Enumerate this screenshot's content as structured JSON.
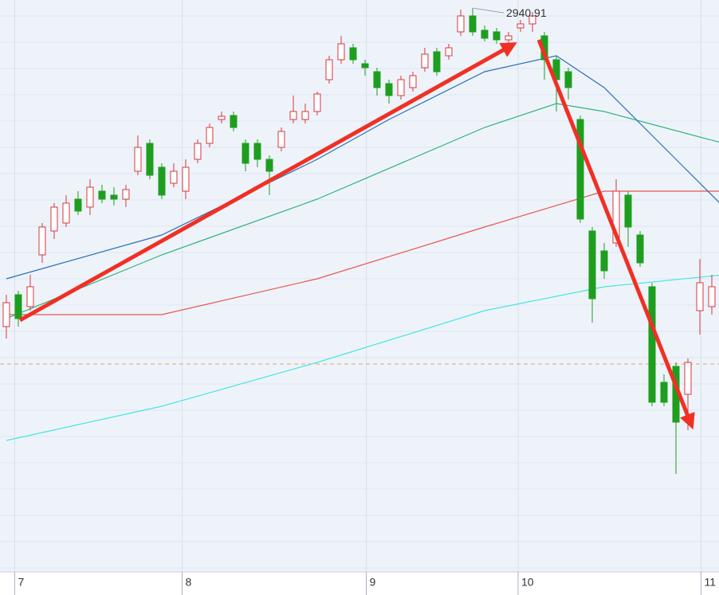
{
  "chart_data": {
    "type": "candlestick",
    "ylim": [
      2587,
      2946
    ],
    "xlim": [
      -0.53,
      59.6
    ],
    "up_color": "#d9373c",
    "down_color": "#1e9e1e",
    "xticks": [
      {
        "value": 0.7,
        "label": "7"
      },
      {
        "value": 14.7,
        "label": "8"
      },
      {
        "value": 30.1,
        "label": "9"
      },
      {
        "value": 42.8,
        "label": "10"
      },
      {
        "value": 58.1,
        "label": "11"
      }
    ],
    "high_annotation": 2940.91,
    "reference_line": {
      "value": 2717.5,
      "color": "#e8a060"
    },
    "open": [
      2741,
      2761,
      2753.5,
      2786,
      2801,
      2806,
      2821,
      2816,
      2826,
      2823.5,
      2821,
      2838.5,
      2856,
      2841,
      2831,
      2826,
      2846,
      2856,
      2871,
      2873.5,
      2856,
      2856,
      2846,
      2853.5,
      2871,
      2871,
      2876,
      2896,
      2908.5,
      2916,
      2906,
      2901,
      2893.5,
      2886,
      2891,
      2903.5,
      2913.5,
      2911,
      2926,
      2936,
      2927,
      2926,
      2921,
      2928.5,
      2931,
      2923.5,
      2908.5,
      2901,
      2871,
      2801,
      2788.5,
      2793.5,
      2823.5,
      2798.5,
      2766,
      2706,
      2716,
      2698.5,
      2751,
      2753.5
    ],
    "high": [
      2761,
      2763.5,
      2773.5,
      2806,
      2818.5,
      2823.5,
      2826,
      2833.5,
      2830,
      2828.5,
      2830,
      2861,
      2858.5,
      2843.5,
      2843.5,
      2846,
      2858.5,
      2868.5,
      2876,
      2876,
      2858.5,
      2858.5,
      2848.5,
      2866,
      2886,
      2881,
      2888.5,
      2911,
      2923.5,
      2918.5,
      2908.5,
      2903.5,
      2896,
      2898.5,
      2901,
      2916,
      2916,
      2918.5,
      2940,
      2940.91,
      2930,
      2928.5,
      2926,
      2933.5,
      2938.5,
      2926,
      2911,
      2903.5,
      2873.5,
      2803.5,
      2793.5,
      2833.5,
      2826,
      2801,
      2768.5,
      2711,
      2718.5,
      2721,
      2783.5,
      2773.5
    ],
    "low": [
      2733.5,
      2741,
      2751,
      2781,
      2796,
      2803.5,
      2811,
      2811,
      2818.5,
      2817,
      2816,
      2836,
      2833.5,
      2821,
      2828.5,
      2821,
      2843.5,
      2853.5,
      2868.5,
      2863.5,
      2838.5,
      2841,
      2823.5,
      2851,
      2868.5,
      2868.5,
      2873.5,
      2893.5,
      2906,
      2906,
      2898.5,
      2886,
      2881,
      2883.5,
      2888.5,
      2901,
      2898.5,
      2908.5,
      2923.5,
      2923.5,
      2920,
      2918.5,
      2918.5,
      2926,
      2926,
      2896,
      2876,
      2883.5,
      2806,
      2743.5,
      2771,
      2791,
      2791,
      2778.5,
      2691,
      2691,
      2648.5,
      2676,
      2736,
      2748.5
    ],
    "close": [
      2756,
      2746,
      2766,
      2803.5,
      2816,
      2818.5,
      2813.5,
      2828.5,
      2821,
      2821,
      2827,
      2853.5,
      2836,
      2823.5,
      2838.5,
      2841,
      2856,
      2866,
      2873,
      2866,
      2843.5,
      2846,
      2838.5,
      2863.5,
      2876,
      2876,
      2887,
      2908.5,
      2918.5,
      2908.5,
      2903.5,
      2891,
      2886,
      2896,
      2898.5,
      2912,
      2901,
      2916,
      2936,
      2926,
      2922,
      2921,
      2923.5,
      2931,
      2936,
      2908.5,
      2896,
      2891,
      2808.5,
      2758.5,
      2776,
      2826,
      2803.5,
      2781,
      2693.5,
      2693.5,
      2681,
      2718.5,
      2768.5,
      2766
    ],
    "lines": [
      {
        "color": "#46e6e0",
        "x": [
          0,
          13,
          26,
          40,
          50,
          60
        ],
        "values": [
          2669.5,
          2691,
          2718.5,
          2751,
          2766,
          2773.5
        ]
      },
      {
        "color": "#e8564f",
        "x": [
          0,
          13,
          26,
          40,
          50,
          60
        ],
        "values": [
          2748.5,
          2748.5,
          2771,
          2803.5,
          2826,
          2826
        ]
      },
      {
        "color": "#2fb37a",
        "x": [
          0,
          13,
          26,
          40,
          46,
          50,
          60
        ],
        "values": [
          2746,
          2786,
          2821,
          2866,
          2881,
          2876,
          2856
        ]
      },
      {
        "color": "#2a6fb8",
        "x": [
          0,
          13,
          26,
          32,
          40,
          46,
          50,
          56,
          60
        ],
        "values": [
          2771,
          2798.5,
          2846,
          2871,
          2901,
          2911,
          2891,
          2846,
          2816
        ]
      }
    ]
  }
}
